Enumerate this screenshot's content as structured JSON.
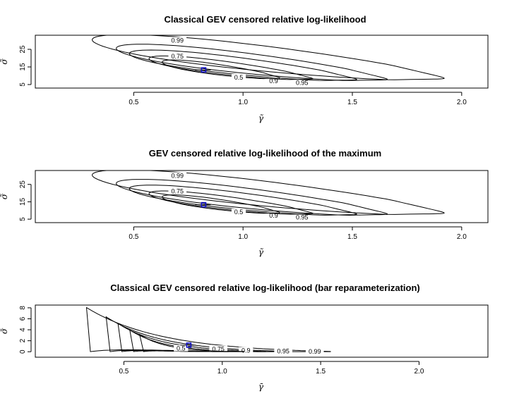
{
  "chart_data": [
    {
      "type": "contour",
      "title": "Classical GEV censored relative log-likelihood",
      "xlabel": "γ̃",
      "ylabel": "σ̃",
      "xlim": [
        0.05,
        2.12
      ],
      "ylim": [
        3,
        33
      ],
      "xticks": [
        0.5,
        1.0,
        1.5,
        2.0
      ],
      "xtick_labels": [
        "0.5",
        "1.0",
        "1.5",
        "2.0"
      ],
      "yticks": [
        5,
        15,
        25
      ],
      "ytick_labels": [
        "5",
        "15",
        "25"
      ],
      "mle": {
        "x": 0.82,
        "y": 13.3
      },
      "levels": [
        {
          "level": 0.99,
          "label": "0.99",
          "x_range": [
            0.31,
            1.92
          ],
          "y_range": [
            8,
            31
          ],
          "label_at": [
            0.7,
            30
          ]
        },
        {
          "level": 0.95,
          "label": "0.95",
          "x_range": [
            0.42,
            1.66
          ],
          "y_range": [
            7.5,
            26
          ],
          "label_at": [
            1.27,
            6
          ]
        },
        {
          "level": 0.9,
          "label": "0.9",
          "x_range": [
            0.48,
            1.52
          ],
          "y_range": [
            7.5,
            23
          ],
          "label_at": [
            1.14,
            7
          ]
        },
        {
          "level": 0.75,
          "label": "0.75",
          "x_range": [
            0.57,
            1.32
          ],
          "y_range": [
            8,
            20
          ],
          "label_at": [
            0.7,
            21
          ]
        },
        {
          "level": 0.5,
          "label": "0.5",
          "x_range": [
            0.63,
            1.17
          ],
          "y_range": [
            8.5,
            18
          ],
          "label_at": [
            0.98,
            9
          ]
        }
      ]
    },
    {
      "type": "contour",
      "title": "GEV censored relative log-likelihood of the maximum",
      "xlabel": "γ̃",
      "ylabel": "σ̃",
      "xlim": [
        0.05,
        2.12
      ],
      "ylim": [
        3,
        33
      ],
      "xticks": [
        0.5,
        1.0,
        1.5,
        2.0
      ],
      "xtick_labels": [
        "0.5",
        "1.0",
        "1.5",
        "2.0"
      ],
      "yticks": [
        5,
        15,
        25
      ],
      "ytick_labels": [
        "5",
        "15",
        "25"
      ],
      "mle": {
        "x": 0.82,
        "y": 13.3
      },
      "levels": [
        {
          "level": 0.99,
          "label": "0.99",
          "x_range": [
            0.31,
            1.92
          ],
          "y_range": [
            8,
            31
          ],
          "label_at": [
            0.7,
            30
          ]
        },
        {
          "level": 0.95,
          "label": "0.95",
          "x_range": [
            0.42,
            1.66
          ],
          "y_range": [
            7.5,
            26
          ],
          "label_at": [
            1.27,
            6
          ]
        },
        {
          "level": 0.9,
          "label": "0.9",
          "x_range": [
            0.48,
            1.52
          ],
          "y_range": [
            7.5,
            23
          ],
          "label_at": [
            1.14,
            7
          ]
        },
        {
          "level": 0.75,
          "label": "0.75",
          "x_range": [
            0.57,
            1.32
          ],
          "y_range": [
            8,
            20
          ],
          "label_at": [
            0.7,
            21
          ]
        },
        {
          "level": 0.5,
          "label": "0.5",
          "x_range": [
            0.63,
            1.17
          ],
          "y_range": [
            8.5,
            18
          ],
          "label_at": [
            0.98,
            9
          ]
        }
      ]
    },
    {
      "type": "contour",
      "title": "Classical GEV censored relative log-likelihood (bar reparameterization)",
      "xlabel": "γ̄",
      "ylabel": "σ̄",
      "xlim": [
        0.05,
        2.35
      ],
      "ylim": [
        -1,
        8.5
      ],
      "xticks": [
        0.5,
        1.0,
        1.5,
        2.0
      ],
      "xtick_labels": [
        "0.5",
        "1.0",
        "1.5",
        "2.0"
      ],
      "yticks": [
        0,
        2,
        4,
        6,
        8
      ],
      "ytick_labels": [
        "0",
        "2",
        "4",
        "6",
        "8"
      ],
      "mle": {
        "x": 0.83,
        "y": 1.2
      },
      "levels": [
        {
          "level": 0.99,
          "label": "0.99",
          "x_range": [
            0.31,
            1.55
          ],
          "y_max": 8.0,
          "label_at": [
            1.47,
            0.0
          ]
        },
        {
          "level": 0.95,
          "label": "0.95",
          "x_range": [
            0.41,
            1.34
          ],
          "y_max": 6.3,
          "label_at": [
            1.31,
            0.1
          ]
        },
        {
          "level": 0.9,
          "label": "0.9",
          "x_range": [
            0.47,
            1.22
          ],
          "y_max": 5.1,
          "label_at": [
            1.12,
            0.2
          ]
        },
        {
          "level": 0.75,
          "label": "0.75",
          "x_range": [
            0.53,
            1.11
          ],
          "y_max": 3.9,
          "label_at": [
            0.98,
            0.5
          ]
        },
        {
          "level": 0.5,
          "label": "0.5",
          "x_range": [
            0.58,
            1.03
          ],
          "y_max": 3.1,
          "label_at": [
            0.79,
            0.6
          ]
        }
      ]
    }
  ],
  "colors": {
    "contour": "#000000",
    "mle_marker": "#1010c8",
    "frame": "#000000"
  }
}
